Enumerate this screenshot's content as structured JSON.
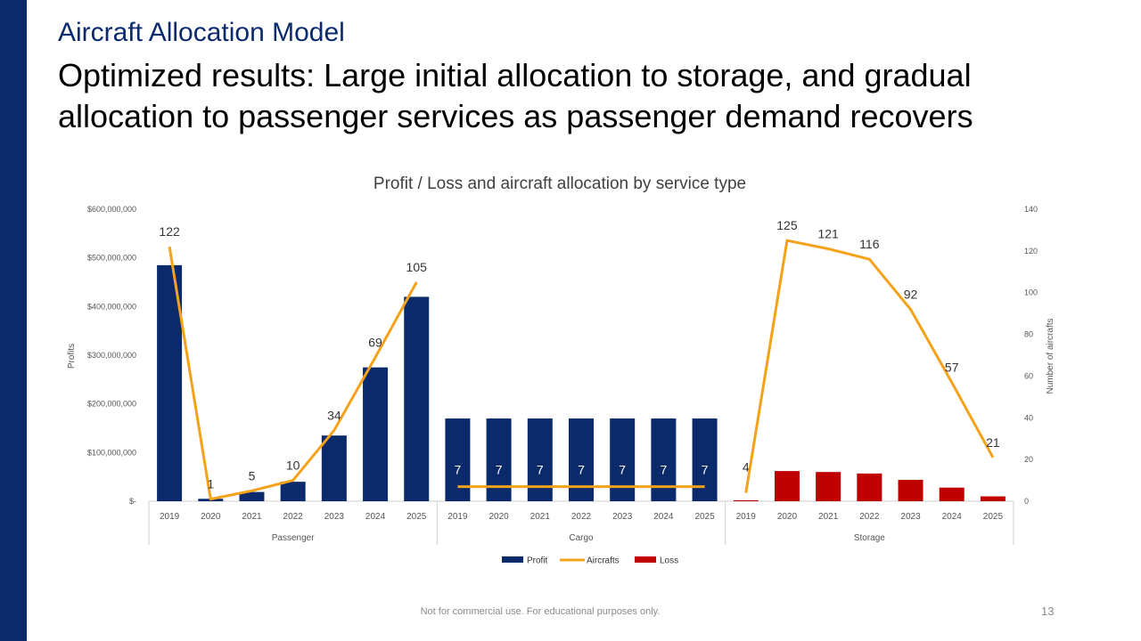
{
  "slide": {
    "kicker": "Aircraft Allocation Model",
    "title": "Optimized results: Large initial allocation to storage, and gradual allocation to passenger services as passenger demand recovers",
    "footer_note": "Not for commercial use. For educational purposes only.",
    "page_number": "13"
  },
  "colors": {
    "profit": "#0a2a6b",
    "aircrafts": "#f5a21b",
    "loss": "#c00000",
    "sidebar": "#0a2a6b"
  },
  "chart_data": {
    "type": "bar",
    "title": "Profit / Loss and aircraft allocation by service type",
    "ylabel": "Profits",
    "y2label": "Number of aircrafts",
    "ylim": [
      0,
      600000000
    ],
    "y2lim": [
      0,
      140
    ],
    "y_ticks": [
      "$-",
      "$100,000,000",
      "$200,000,000",
      "$300,000,000",
      "$400,000,000",
      "$500,000,000",
      "$600,000,000"
    ],
    "y2_ticks": [
      "0",
      "20",
      "40",
      "60",
      "80",
      "100",
      "120",
      "140"
    ],
    "groups": [
      {
        "name": "Passenger",
        "years": [
          "2019",
          "2020",
          "2021",
          "2022",
          "2023",
          "2024",
          "2025"
        ],
        "profit": [
          485000000,
          5000000,
          19000000,
          40000000,
          135000000,
          275000000,
          420000000
        ],
        "loss": [
          0,
          0,
          0,
          0,
          0,
          0,
          0
        ],
        "aircrafts": [
          122,
          1,
          5,
          10,
          34,
          69,
          105
        ]
      },
      {
        "name": "Cargo",
        "years": [
          "2019",
          "2020",
          "2021",
          "2022",
          "2023",
          "2024",
          "2025"
        ],
        "profit": [
          170000000,
          170000000,
          170000000,
          170000000,
          170000000,
          170000000,
          170000000
        ],
        "loss": [
          0,
          0,
          0,
          0,
          0,
          0,
          0
        ],
        "aircrafts": [
          7,
          7,
          7,
          7,
          7,
          7,
          7
        ]
      },
      {
        "name": "Storage",
        "years": [
          "2019",
          "2020",
          "2021",
          "2022",
          "2023",
          "2024",
          "2025"
        ],
        "profit": [
          0,
          0,
          0,
          0,
          0,
          0,
          0
        ],
        "loss": [
          2000000,
          62000000,
          60000000,
          57000000,
          44000000,
          28000000,
          10000000
        ],
        "aircrafts": [
          4,
          125,
          121,
          116,
          92,
          57,
          21
        ]
      }
    ],
    "legend": [
      "Profit",
      "Aircrafts",
      "Loss"
    ],
    "legend_position": "bottom"
  }
}
